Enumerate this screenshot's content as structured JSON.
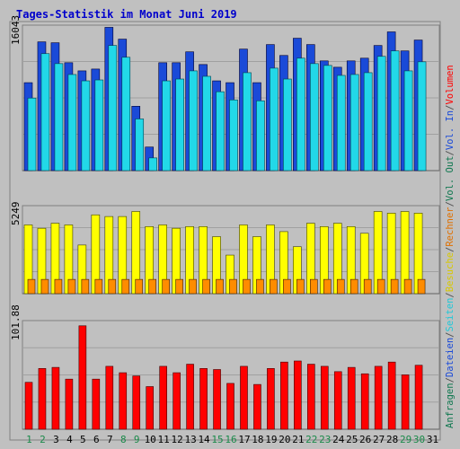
{
  "chart_data": {
    "type": "bar",
    "title": "Tages-Statistik im Monat Juni 2019",
    "categories": [
      "1",
      "2",
      "3",
      "4",
      "5",
      "6",
      "7",
      "8",
      "9",
      "10",
      "11",
      "12",
      "13",
      "14",
      "15",
      "16",
      "17",
      "18",
      "19",
      "20",
      "21",
      "22",
      "23",
      "24",
      "25",
      "26",
      "27",
      "28",
      "29",
      "30",
      "31"
    ],
    "weekend_days": [
      "1",
      "2",
      "8",
      "9",
      "15",
      "16",
      "22",
      "23",
      "29",
      "30"
    ],
    "panels": [
      {
        "id": "top",
        "max_label": "16043",
        "ylim": [
          0,
          16043
        ],
        "series": [
          {
            "name": "Anfragen",
            "color": "#1a4ad8",
            "values": [
              9700,
              14200,
              14100,
              11900,
              11000,
              11200,
              15800,
              14500,
              7100,
              2600,
              11900,
              11900,
              13100,
              11700,
              9900,
              9700,
              13400,
              9700,
              13900,
              12700,
              14600,
              13900,
              12100,
              11400,
              12100,
              12400,
              13800,
              15300,
              13200,
              14400,
              null
            ]
          },
          {
            "name": "Dateien",
            "color": "#22d8e8",
            "values": [
              8000,
              12900,
              11800,
              10600,
              9900,
              10000,
              13800,
              12500,
              5700,
              1400,
              9900,
              10100,
              11000,
              10400,
              8700,
              7800,
              10800,
              7700,
              11300,
              10100,
              12400,
              11800,
              11600,
              10500,
              10600,
              10800,
              12600,
              13200,
              11000,
              12000,
              null
            ]
          },
          {
            "name": "Seiten",
            "color": "#22d8e8",
            "values": []
          }
        ]
      },
      {
        "id": "mid",
        "max_label": "5249",
        "ylim": [
          0,
          5249
        ],
        "series": [
          {
            "name": "Besuche",
            "color": "#ffff00",
            "values": [
              4100,
              3900,
              4200,
              4100,
              2900,
              4700,
              4600,
              4600,
              4900,
              4000,
              4100,
              3900,
              4000,
              4000,
              3400,
              2300,
              4100,
              3400,
              4100,
              3700,
              2800,
              4200,
              4000,
              4200,
              4000,
              3600,
              4900,
              4800,
              4900,
              4800,
              null
            ]
          },
          {
            "name": "Rechner",
            "color": "#ff8c00",
            "values": [
              850,
              850,
              850,
              850,
              850,
              850,
              850,
              850,
              850,
              850,
              850,
              850,
              850,
              850,
              850,
              850,
              850,
              850,
              850,
              850,
              850,
              850,
              850,
              850,
              850,
              850,
              850,
              850,
              850,
              850,
              null
            ]
          }
        ]
      },
      {
        "id": "bot",
        "max_label": "101.88",
        "ylim": [
          0,
          101.88
        ],
        "series": [
          {
            "name": "Volumen",
            "color": "#ff0000",
            "values": [
              44,
              57,
              58,
              47,
              97,
              47,
              59,
              53,
              50,
              40,
              59,
              53,
              61,
              57,
              56,
              43,
              59,
              42,
              57,
              63,
              64,
              61,
              59,
              54,
              58,
              52,
              59,
              63,
              51,
              60,
              null
            ]
          }
        ]
      }
    ],
    "right_legend": [
      {
        "text": "Anfragen",
        "color": "#107850"
      },
      {
        "text": "/",
        "color": "#505050"
      },
      {
        "text": "Dateien",
        "color": "#1a4ad8"
      },
      {
        "text": "/",
        "color": "#505050"
      },
      {
        "text": "Seiten",
        "color": "#20c8d8"
      },
      {
        "text": "/",
        "color": "#505050"
      },
      {
        "text": "Besuche",
        "color": "#d8c800"
      },
      {
        "text": "/",
        "color": "#505050"
      },
      {
        "text": "Rechner",
        "color": "#e07000"
      },
      {
        "text": "/",
        "color": "#505050"
      },
      {
        "text": "Vol. Out",
        "color": "#107850"
      },
      {
        "text": "/",
        "color": "#505050"
      },
      {
        "text": "Vol. In",
        "color": "#1a4ad8"
      },
      {
        "text": "/",
        "color": "#505050"
      },
      {
        "text": "Volumen",
        "color": "#ff0000"
      }
    ],
    "colors": {
      "background": "#c0c0c0",
      "title": "#0000cc",
      "weekday_label": "#000000",
      "weekend_label": "#1a8a4a",
      "grid": "#a0a0a0"
    }
  }
}
